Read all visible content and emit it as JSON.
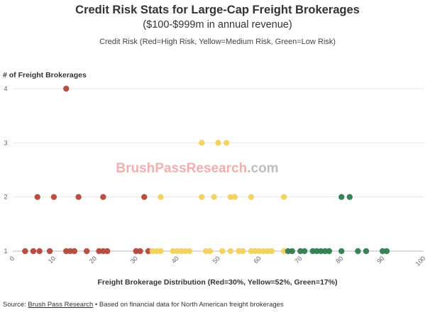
{
  "header": {
    "title": "Credit Risk Stats for Large-Cap Freight Brokerages",
    "subtitle": "($100-$999m in annual revenue)",
    "note": "Credit Risk (Red=High Risk, Yellow=Medium Risk, Green=Low Risk)"
  },
  "watermark": {
    "part1": "BrushPass",
    "part2": "Research",
    "part3": ".com",
    "color1": "#f0a8a8",
    "color2": "#b8b8b8"
  },
  "footer": {
    "prefix": "Source: ",
    "link_text": "Brush Pass Research",
    "suffix": " • Based on financial data for North American freight brokerages"
  },
  "colors": {
    "high": "#b5473a",
    "medium": "#f2d15c",
    "low": "#2e7d4f",
    "grid": "#e6e6e6",
    "axis": "#bbbbbb"
  },
  "chart_data": {
    "type": "scatter",
    "title": "Credit Risk Stats for Large-Cap Freight Brokerages",
    "subtitle": "($100-$999m in annual revenue)",
    "xlabel": "Freight Brokerage Distribution (Red=30%, Yellow=52%, Green=17%)",
    "ylabel": "# of Freight Brokerages",
    "xlim": [
      0,
      100
    ],
    "ylim": [
      1,
      4
    ],
    "x_ticks": [
      0,
      10,
      20,
      30,
      40,
      50,
      60,
      70,
      80,
      90,
      100
    ],
    "y_ticks": [
      1,
      2,
      3,
      4
    ],
    "grid": true,
    "series": [
      {
        "risk": "high",
        "color": "#b5473a",
        "points": [
          [
            13,
            4
          ],
          [
            6,
            2
          ],
          [
            10,
            2
          ],
          [
            16,
            2
          ],
          [
            22,
            2
          ],
          [
            32,
            2
          ],
          [
            3,
            1
          ],
          [
            5,
            1
          ],
          [
            6.5,
            1
          ],
          [
            9,
            1
          ],
          [
            13,
            1
          ],
          [
            14,
            1
          ],
          [
            15,
            1
          ],
          [
            18,
            1
          ],
          [
            21,
            1
          ],
          [
            22,
            1
          ],
          [
            23,
            1
          ],
          [
            30,
            1
          ],
          [
            31,
            1
          ],
          [
            33,
            1
          ]
        ]
      },
      {
        "risk": "medium",
        "color": "#f2d15c",
        "points": [
          [
            46,
            3
          ],
          [
            50,
            3
          ],
          [
            52,
            3
          ],
          [
            36,
            2
          ],
          [
            46,
            2
          ],
          [
            49,
            2
          ],
          [
            53,
            2
          ],
          [
            54,
            2
          ],
          [
            58,
            2
          ],
          [
            66,
            2
          ],
          [
            34,
            1
          ],
          [
            35,
            1
          ],
          [
            36,
            1
          ],
          [
            39,
            1
          ],
          [
            40,
            1
          ],
          [
            41,
            1
          ],
          [
            42,
            1
          ],
          [
            43,
            1
          ],
          [
            47,
            1
          ],
          [
            48,
            1
          ],
          [
            51,
            1
          ],
          [
            53,
            1
          ],
          [
            55,
            1
          ],
          [
            56,
            1
          ],
          [
            58,
            1
          ],
          [
            59,
            1
          ],
          [
            60,
            1
          ],
          [
            61,
            1
          ],
          [
            62,
            1
          ],
          [
            63,
            1
          ],
          [
            66,
            1
          ]
        ]
      },
      {
        "risk": "low",
        "color": "#2e7d4f",
        "points": [
          [
            80,
            2
          ],
          [
            82,
            2
          ],
          [
            67,
            1
          ],
          [
            68,
            1
          ],
          [
            70,
            1
          ],
          [
            71,
            1
          ],
          [
            73,
            1
          ],
          [
            74,
            1
          ],
          [
            75,
            1
          ],
          [
            76,
            1
          ],
          [
            77,
            1
          ],
          [
            80,
            1
          ],
          [
            84,
            1
          ],
          [
            86,
            1
          ],
          [
            90,
            1
          ],
          [
            91,
            1
          ]
        ]
      }
    ]
  }
}
